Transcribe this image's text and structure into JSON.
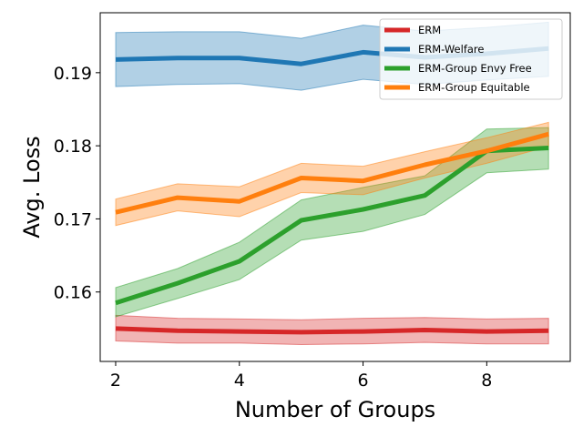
{
  "chart_data": {
    "type": "line",
    "xlabel": "Number of Groups",
    "ylabel": "Avg. Loss",
    "xlim": [
      1.75,
      9.35
    ],
    "ylim": [
      0.1505,
      0.1982
    ],
    "xticks": [
      2,
      4,
      6,
      8
    ],
    "xtick_labels": [
      "2",
      "4",
      "6",
      "8"
    ],
    "yticks": [
      0.16,
      0.17,
      0.18,
      0.19
    ],
    "ytick_labels": [
      "0.16",
      "0.17",
      "0.18",
      "0.19"
    ],
    "grid": false,
    "legend_position": "top-right",
    "x": [
      2,
      3,
      4,
      5,
      6,
      7,
      8,
      9
    ],
    "series": [
      {
        "name": "ERM",
        "color": "#d62728",
        "values": [
          0.155,
          0.1547,
          0.1546,
          0.1545,
          0.1546,
          0.1548,
          0.1546,
          0.1547
        ],
        "lower": [
          0.1533,
          0.153,
          0.153,
          0.1528,
          0.1529,
          0.1531,
          0.1529,
          0.1529
        ],
        "upper": [
          0.1568,
          0.1564,
          0.1563,
          0.1562,
          0.1564,
          0.1565,
          0.1563,
          0.1564
        ]
      },
      {
        "name": "ERM-Welfare",
        "color": "#1f77b4",
        "values": [
          0.1918,
          0.192,
          0.192,
          0.1912,
          0.1928,
          0.1921,
          0.1926,
          0.1933
        ],
        "lower": [
          0.1881,
          0.1884,
          0.1885,
          0.1876,
          0.1891,
          0.1884,
          0.189,
          0.1895
        ],
        "upper": [
          0.1955,
          0.1956,
          0.1956,
          0.1947,
          0.1965,
          0.1957,
          0.1962,
          0.1969
        ]
      },
      {
        "name": "ERM-Group Envy Free",
        "color": "#2ca02c",
        "values": [
          0.1585,
          0.1612,
          0.1642,
          0.1698,
          0.1713,
          0.1732,
          0.1793,
          0.1797
        ],
        "lower": [
          0.1566,
          0.1591,
          0.1617,
          0.1671,
          0.1683,
          0.1706,
          0.1763,
          0.1768
        ],
        "upper": [
          0.1606,
          0.1632,
          0.1668,
          0.1726,
          0.1743,
          0.1759,
          0.1823,
          0.1825
        ]
      },
      {
        "name": "ERM-Group Equitable",
        "color": "#ff7f0e",
        "values": [
          0.1709,
          0.1729,
          0.1724,
          0.1756,
          0.1752,
          0.1774,
          0.1793,
          0.1816
        ],
        "lower": [
          0.1691,
          0.1711,
          0.1703,
          0.1736,
          0.1733,
          0.1756,
          0.1776,
          0.1799
        ],
        "upper": [
          0.1727,
          0.1748,
          0.1744,
          0.1776,
          0.1772,
          0.1792,
          0.1811,
          0.1832
        ]
      }
    ]
  }
}
